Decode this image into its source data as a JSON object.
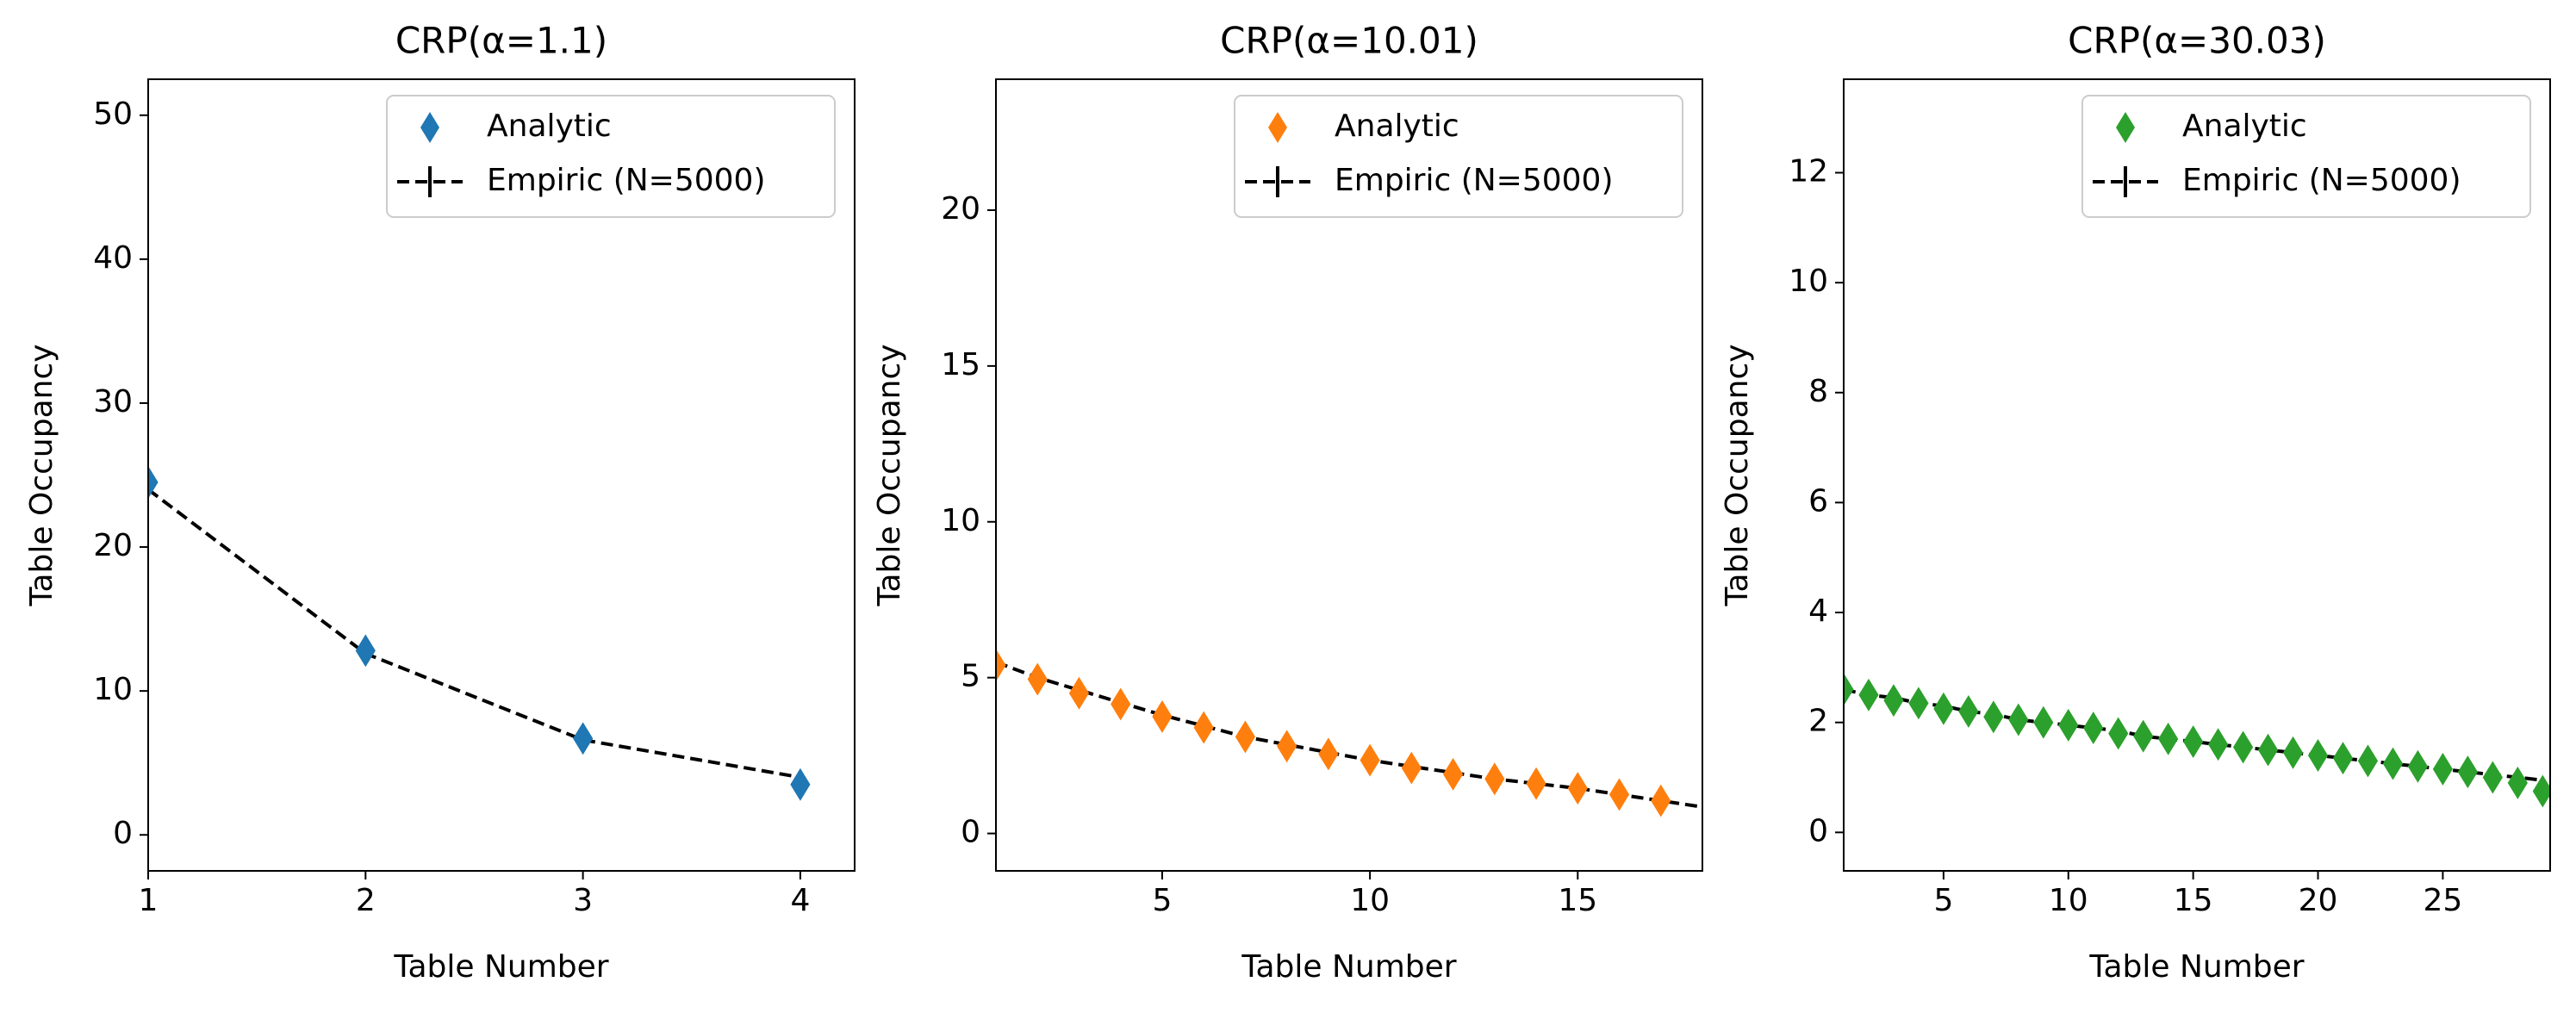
{
  "chart_data": [
    {
      "type": "line",
      "title": "CRP(α=1.1)",
      "xlabel": "Table Number",
      "ylabel": "Table Occupancy",
      "xlim": [
        1,
        4.25
      ],
      "ylim": [
        -2.5,
        52.5
      ],
      "xticks": [
        1,
        2,
        3,
        4
      ],
      "yticks": [
        0,
        10,
        20,
        30,
        40,
        50
      ],
      "legend": "upper right",
      "series": [
        {
          "name": "Analytic",
          "color": "#1f77b4",
          "marker": "diamond",
          "x": [
            1,
            2,
            3,
            4
          ],
          "values": [
            24.5,
            12.8,
            6.7,
            3.5
          ]
        },
        {
          "name": "Empiric (N=5000)",
          "color": "#000000",
          "linestyle": "dashed",
          "x": [
            1,
            2,
            3,
            4
          ],
          "values": [
            24.0,
            12.6,
            6.6,
            4.0
          ]
        }
      ]
    },
    {
      "type": "line",
      "title": "CRP(α=10.01)",
      "xlabel": "Table Number",
      "ylabel": "Table Occupancy",
      "xlim": [
        1,
        18
      ],
      "ylim": [
        -1.2,
        24.2
      ],
      "xticks": [
        5,
        10,
        15
      ],
      "yticks": [
        0,
        5,
        10,
        15,
        20
      ],
      "legend": "upper right",
      "series": [
        {
          "name": "Analytic",
          "color": "#ff7f0e",
          "marker": "diamond",
          "x": [
            1,
            2,
            3,
            4,
            5,
            6,
            7,
            8,
            9,
            10,
            11,
            12,
            13,
            14,
            15,
            16,
            17
          ],
          "values": [
            5.4,
            4.95,
            4.5,
            4.15,
            3.75,
            3.4,
            3.1,
            2.8,
            2.55,
            2.35,
            2.1,
            1.9,
            1.75,
            1.6,
            1.45,
            1.25,
            1.05
          ]
        },
        {
          "name": "Empiric (N=5000)",
          "color": "#000000",
          "linestyle": "dashed",
          "x": [
            1,
            2,
            3,
            4,
            5,
            6,
            7,
            8,
            9,
            10,
            11,
            12,
            13,
            14,
            15,
            16,
            17,
            18
          ],
          "values": [
            5.5,
            5.0,
            4.6,
            4.2,
            3.8,
            3.45,
            3.1,
            2.85,
            2.6,
            2.35,
            2.15,
            1.95,
            1.75,
            1.6,
            1.45,
            1.25,
            1.05,
            0.85
          ]
        }
      ]
    },
    {
      "type": "line",
      "title": "CRP(α=30.03)",
      "xlabel": "Table Number",
      "ylabel": "Table Occupancy",
      "xlim": [
        1,
        29.3
      ],
      "ylim": [
        -0.7,
        13.7
      ],
      "xticks": [
        5,
        10,
        15,
        20,
        25
      ],
      "yticks": [
        0,
        2,
        4,
        6,
        8,
        10,
        12
      ],
      "legend": "upper right",
      "series": [
        {
          "name": "Analytic",
          "color": "#2ca02c",
          "marker": "diamond",
          "x": [
            1,
            2,
            3,
            4,
            5,
            6,
            7,
            8,
            9,
            10,
            11,
            12,
            13,
            14,
            15,
            16,
            17,
            18,
            19,
            20,
            21,
            22,
            23,
            24,
            25,
            26,
            27,
            28,
            29
          ],
          "values": [
            2.6,
            2.5,
            2.4,
            2.35,
            2.25,
            2.2,
            2.1,
            2.05,
            2.0,
            1.95,
            1.9,
            1.8,
            1.75,
            1.7,
            1.65,
            1.6,
            1.55,
            1.5,
            1.45,
            1.4,
            1.35,
            1.3,
            1.25,
            1.2,
            1.15,
            1.1,
            1.0,
            0.9,
            0.75
          ]
        },
        {
          "name": "Empiric (N=5000)",
          "color": "#000000",
          "linestyle": "dashed",
          "x": [
            1,
            2,
            3,
            4,
            5,
            6,
            7,
            8,
            9,
            10,
            11,
            12,
            13,
            14,
            15,
            16,
            17,
            18,
            19,
            20,
            21,
            22,
            23,
            24,
            25,
            26,
            27,
            28,
            29
          ],
          "values": [
            2.6,
            2.5,
            2.45,
            2.35,
            2.3,
            2.2,
            2.15,
            2.05,
            2.0,
            1.95,
            1.9,
            1.85,
            1.75,
            1.7,
            1.65,
            1.6,
            1.55,
            1.5,
            1.45,
            1.4,
            1.35,
            1.3,
            1.25,
            1.2,
            1.15,
            1.1,
            1.05,
            1.0,
            0.95
          ]
        }
      ]
    }
  ]
}
